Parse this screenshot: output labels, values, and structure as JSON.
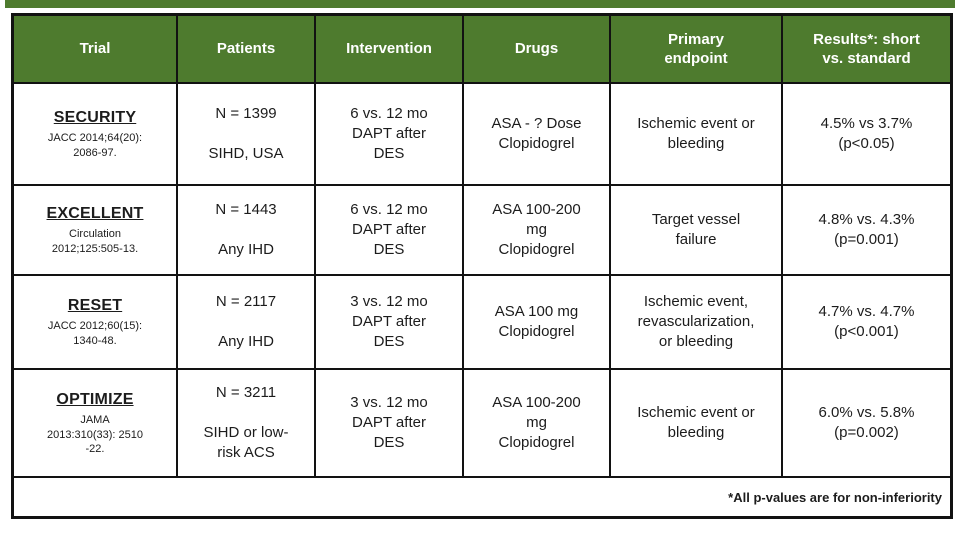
{
  "style": {
    "accent_green": "#4e7b2e",
    "border_color": "#121212",
    "header_text_color": "#ffffff",
    "body_text_color": "#1c1c1c"
  },
  "table": {
    "headers": {
      "trial": "Trial",
      "patients": "Patients",
      "intervention": "Intervention",
      "drugs": "Drugs",
      "endpoint": "Primary\nendpoint",
      "results": "Results*: short\nvs. standard"
    },
    "rows": [
      {
        "trial_name": "SECURITY",
        "citation": "JACC 2014;64(20):\n2086-97.",
        "patients": "N = 1399\n\nSIHD, USA",
        "intervention": "6 vs. 12 mo\nDAPT after\nDES",
        "drugs": "ASA - ? Dose\nClopidogrel",
        "endpoint": "Ischemic event or\nbleeding",
        "results": "4.5% vs 3.7%\n(p<0.05)"
      },
      {
        "trial_name": "EXCELLENT",
        "citation": "Circulation\n2012;125:505-13.",
        "patients": "N = 1443\n\nAny IHD",
        "intervention": "6 vs. 12 mo\nDAPT after\nDES",
        "drugs": "ASA 100-200\nmg\nClopidogrel",
        "endpoint": "Target vessel\nfailure",
        "results": "4.8% vs. 4.3%\n(p=0.001)"
      },
      {
        "trial_name": "RESET",
        "citation": "JACC 2012;60(15):\n1340-48.",
        "patients": "N = 2117\n\nAny IHD",
        "intervention": "3 vs. 12 mo\nDAPT after\nDES",
        "drugs": "ASA 100 mg\nClopidogrel",
        "endpoint": "Ischemic event,\nrevascularization,\nor bleeding",
        "results": "4.7% vs. 4.7%\n(p<0.001)"
      },
      {
        "trial_name": "OPTIMIZE",
        "citation": "JAMA\n2013:310(33): 2510\n-22.",
        "patients": "N = 3211\n\nSIHD or low-\nrisk ACS",
        "intervention": "3 vs. 12 mo\nDAPT after\nDES",
        "drugs": "ASA 100-200\nmg\nClopidogrel",
        "endpoint": "Ischemic event or\nbleeding",
        "results": "6.0% vs. 5.8%\n(p=0.002)"
      }
    ],
    "footnote": "*All p-values are for non-inferiority"
  }
}
